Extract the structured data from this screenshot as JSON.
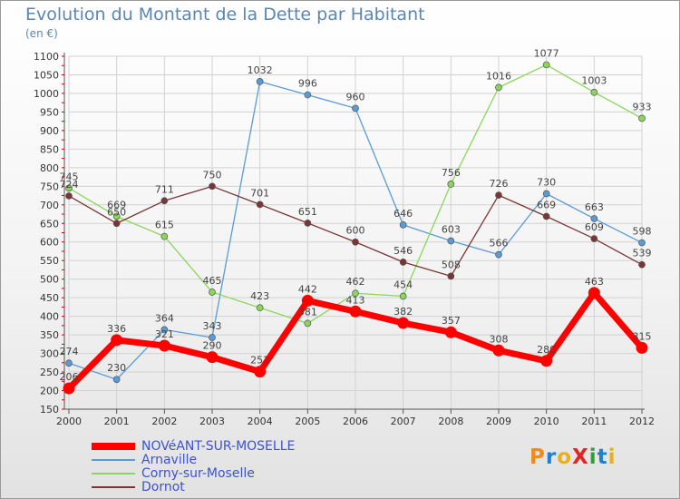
{
  "title": "Evolution du Montant de la Dette par Habitant",
  "subtitle": "(en €)",
  "logo": "ProXiti",
  "chart_data": {
    "type": "line",
    "title": "Evolution du Montant de la Dette par Habitant",
    "ylabel": "(en €)",
    "x": [
      "2000",
      "2001",
      "2002",
      "2003",
      "2004",
      "2005",
      "2006",
      "2007",
      "2008",
      "2009",
      "2010",
      "2011",
      "2012"
    ],
    "ylim": [
      150,
      1100
    ],
    "yticks": [
      150,
      200,
      250,
      300,
      350,
      400,
      450,
      500,
      550,
      600,
      650,
      700,
      750,
      800,
      850,
      900,
      950,
      1000,
      1050,
      1100
    ],
    "grid": true,
    "legend_position": "bottom-left",
    "series": [
      {
        "name": "NOVéANT-SUR-MOSELLE",
        "color": "#ff0000",
        "values": [
          206,
          336,
          321,
          290,
          251,
          442,
          413,
          382,
          357,
          308,
          280,
          463,
          315
        ]
      },
      {
        "name": "Arnaville",
        "color": "#5b9bd5",
        "values": [
          274,
          230,
          364,
          343,
          1032,
          996,
          960,
          646,
          603,
          566,
          730,
          663,
          598
        ]
      },
      {
        "name": "Corny-sur-Moselle",
        "color": "#8ad65c",
        "values": [
          745,
          669,
          615,
          465,
          423,
          381,
          462,
          454,
          756,
          1016,
          1077,
          1003,
          933
        ]
      },
      {
        "name": "Dornot",
        "color": "#7b3535",
        "values": [
          724,
          650,
          711,
          750,
          701,
          651,
          600,
          546,
          508,
          726,
          669,
          609,
          539
        ]
      }
    ]
  }
}
